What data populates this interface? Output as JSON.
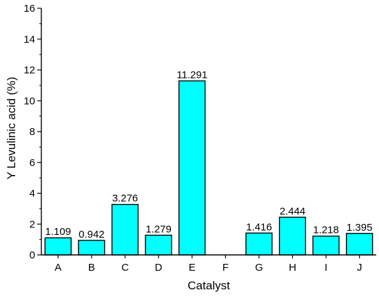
{
  "chart_data": {
    "type": "bar",
    "title": "",
    "xlabel": "Catalyst",
    "ylabel": "Y Levulinic acid (%)",
    "categories": [
      "A",
      "B",
      "C",
      "D",
      "E",
      "F",
      "G",
      "H",
      "I",
      "J"
    ],
    "values": [
      1.109,
      0.942,
      3.276,
      1.279,
      11.291,
      null,
      1.416,
      2.444,
      1.218,
      1.395
    ],
    "value_labels": [
      "1.109",
      "0.942",
      "3.276",
      "1.279",
      "11.291",
      "",
      "1.416",
      "2.444",
      "1.218",
      "1.395"
    ],
    "ylim": [
      0,
      16
    ],
    "yticks": [
      0,
      2,
      4,
      6,
      8,
      10,
      12,
      14,
      16
    ],
    "ytick_labels": [
      "0",
      "2",
      "4",
      "6",
      "8",
      "10",
      "12",
      "14",
      "16"
    ],
    "bar_color": "#00FFFF",
    "bar_edge_color": "#000000",
    "grid": false,
    "legend": "none"
  }
}
